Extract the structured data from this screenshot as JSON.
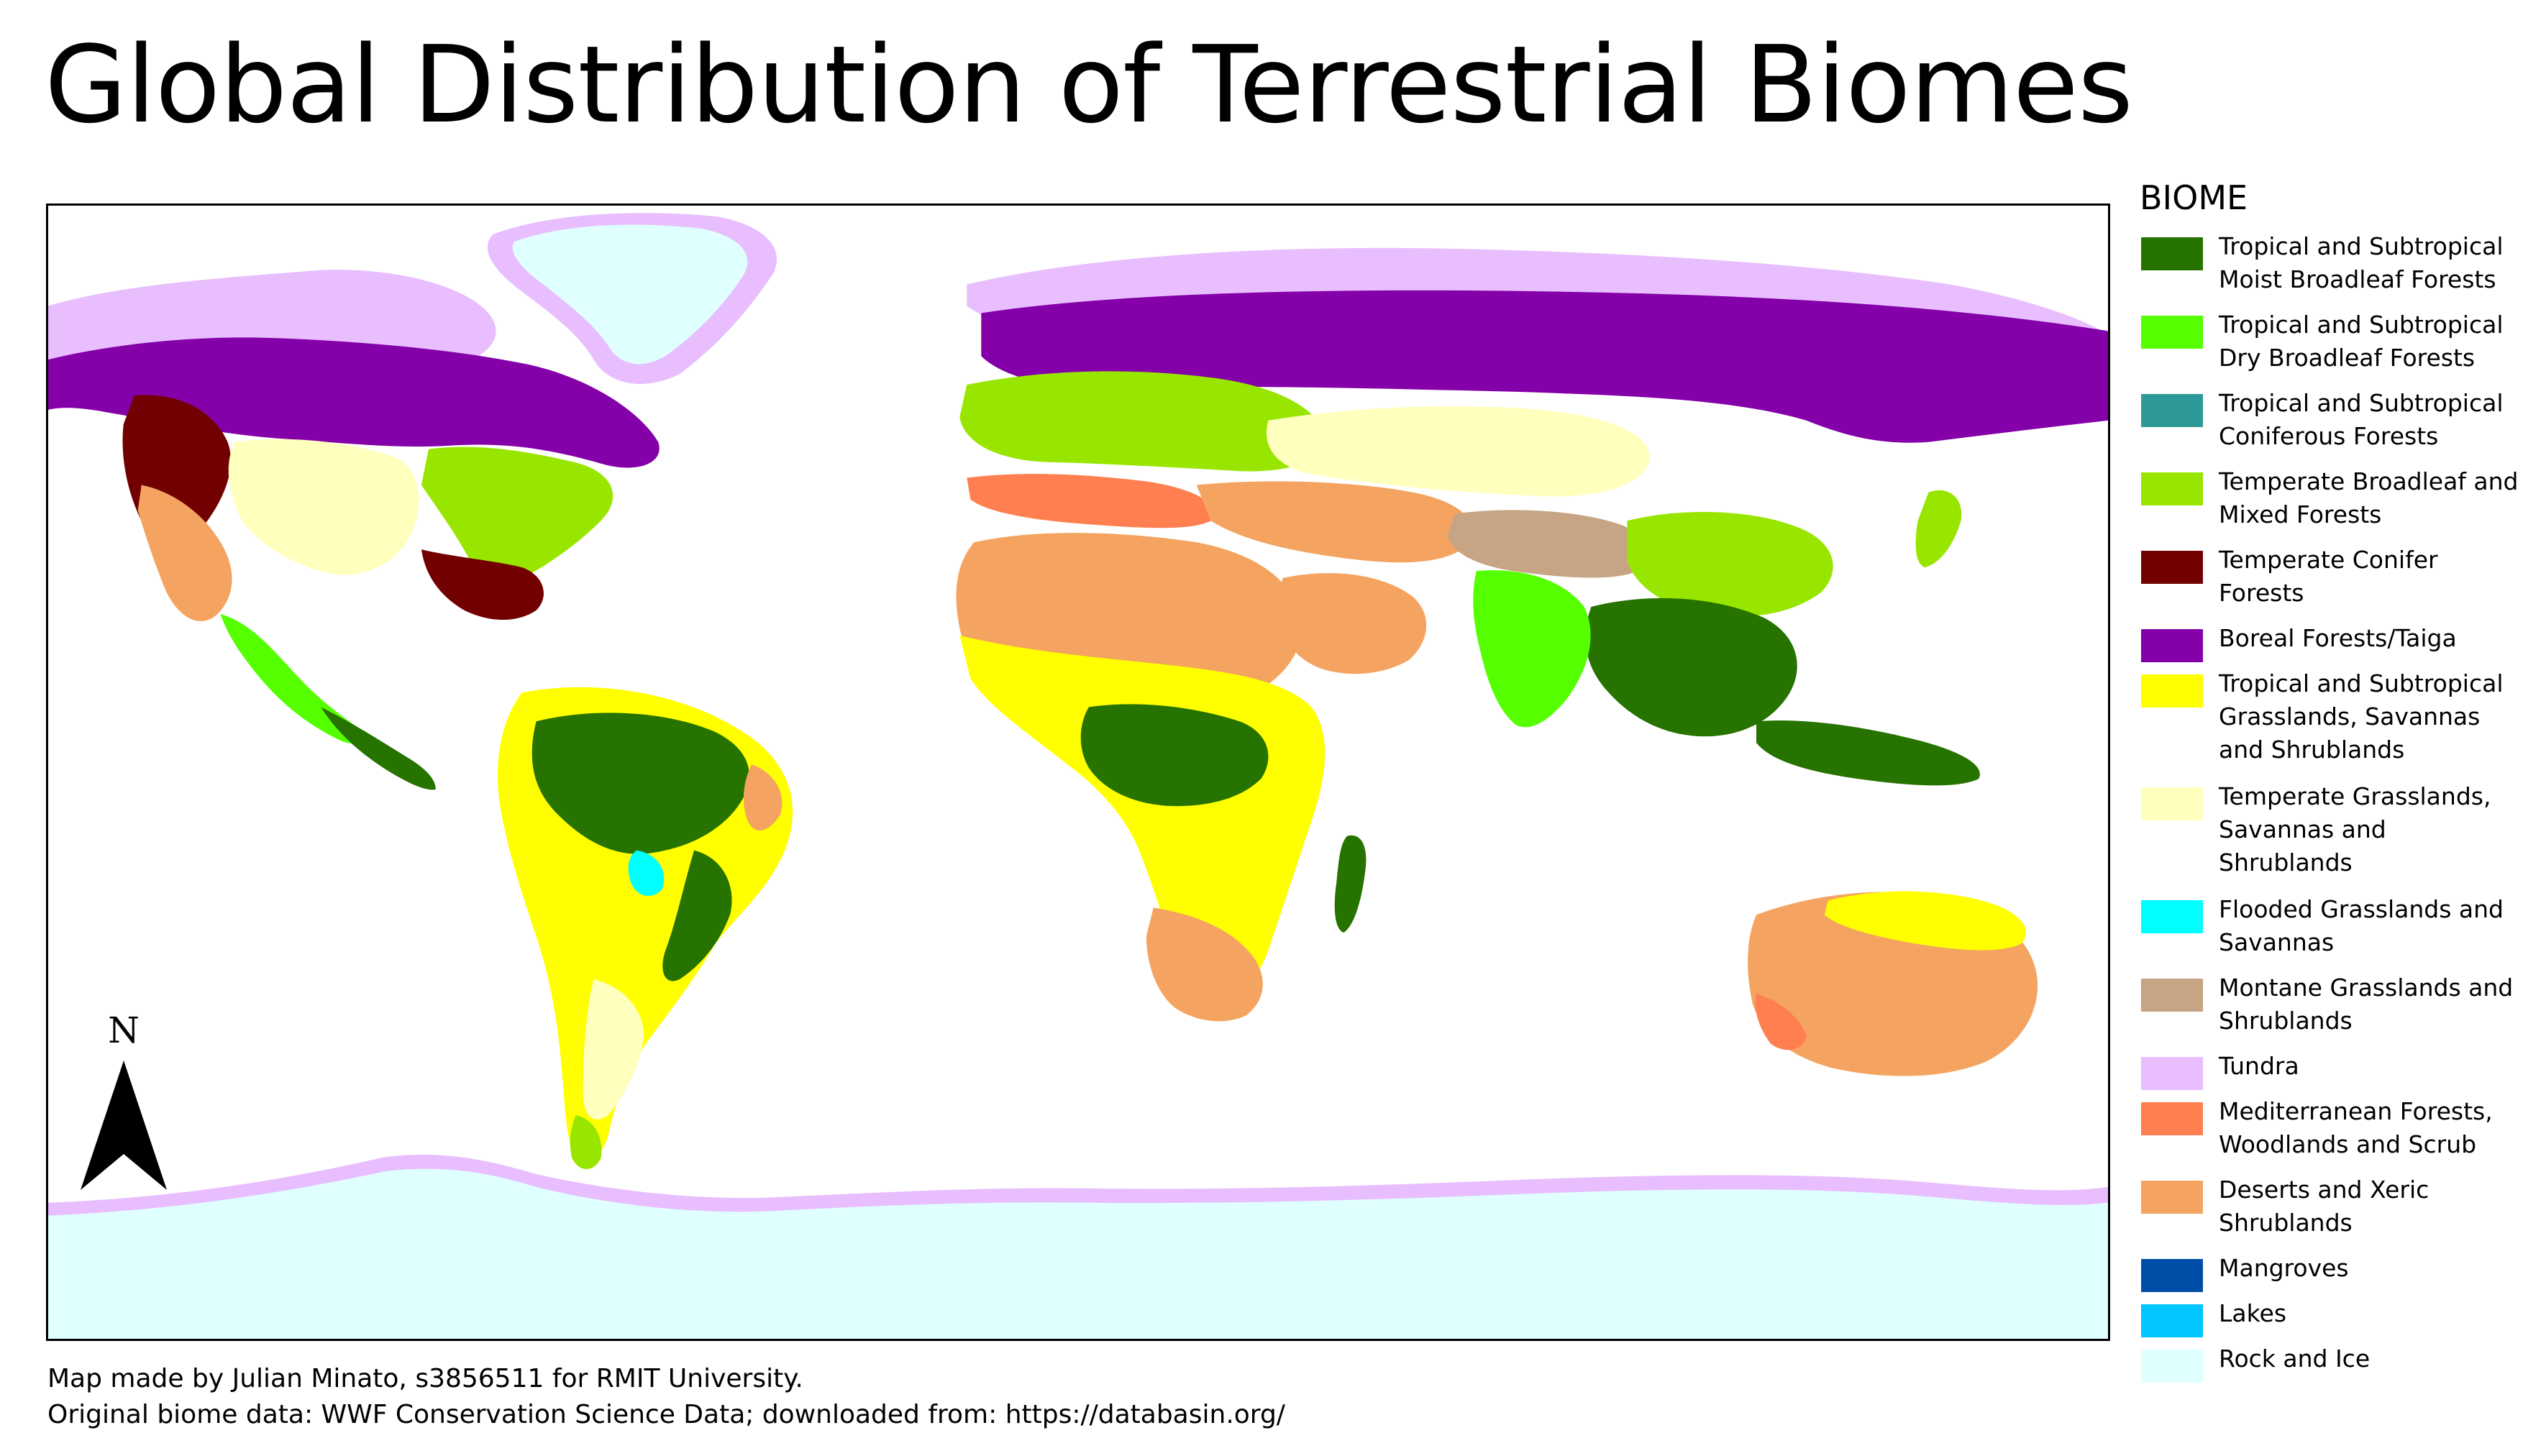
{
  "title": "Global Distribution of Terrestrial Biomes",
  "north_label": "N",
  "legend": {
    "title": "BIOME",
    "items": [
      {
        "label": "Tropical and Subtropical Moist Broadleaf Forests",
        "color": "#267300",
        "lines": 2
      },
      {
        "label": "Tropical and Subtropical Dry Broadleaf Forests",
        "color": "#55ff00",
        "lines": 2
      },
      {
        "label": "Tropical and Subtropical Coniferous Forests",
        "color": "#2e9999",
        "lines": 2
      },
      {
        "label": "Temperate Broadleaf and Mixed Forests",
        "color": "#98e600",
        "lines": 2
      },
      {
        "label": "Temperate Conifer Forests",
        "color": "#730000",
        "lines": 2
      },
      {
        "label": "Boreal Forests/Taiga",
        "color": "#8400a8",
        "lines": 1
      },
      {
        "label": "Tropical and Subtropical Grasslands, Savannas and Shrublands",
        "color": "#ffff00",
        "lines": 3
      },
      {
        "label": "Temperate Grasslands, Savannas and Shrublands",
        "color": "#ffffbe",
        "lines": 3
      },
      {
        "label": "Flooded Grasslands and Savannas",
        "color": "#00ffff",
        "lines": 2
      },
      {
        "label": "Montane Grasslands and Shrublands",
        "color": "#c7a584",
        "lines": 2
      },
      {
        "label": "Tundra",
        "color": "#e8beff",
        "lines": 1
      },
      {
        "label": "Mediterranean Forests, Woodlands and Scrub",
        "color": "#ff7f50",
        "lines": 2
      },
      {
        "label": "Deserts and Xeric Shrublands",
        "color": "#f4a460",
        "lines": 2
      },
      {
        "label": "Mangroves",
        "color": "#004da8",
        "lines": 1
      },
      {
        "label": "Lakes",
        "color": "#00c5ff",
        "lines": 1
      },
      {
        "label": "Rock and Ice",
        "color": "#e0ffff",
        "lines": 1
      }
    ]
  },
  "credits": {
    "line1": "Map made by Julian Minato, s3856511 for RMIT University.",
    "line2": "Original biome data: WWF Conservation Science Data; downloaded from: https://databasin.org/"
  }
}
